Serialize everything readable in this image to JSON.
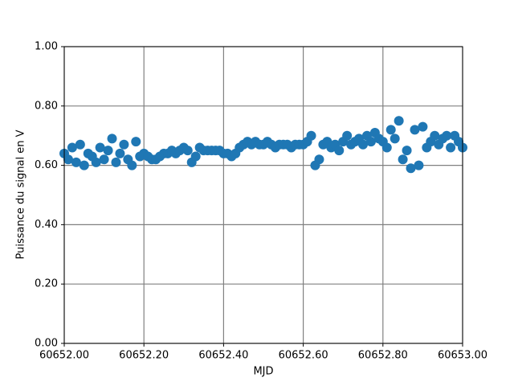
{
  "chart_data": {
    "type": "scatter",
    "xlabel": "MJD",
    "ylabel": "Puissance du signal en V",
    "color": "#1f77b4",
    "grid": true,
    "xlim": [
      60652.0,
      60653.0
    ],
    "xticks": [
      {
        "value": 60652.0,
        "label": "60652.00"
      },
      {
        "value": 60652.2,
        "label": "60652.20"
      },
      {
        "value": 60652.4,
        "label": "60652.40"
      },
      {
        "value": 60652.6,
        "label": "60652.60"
      },
      {
        "value": 60652.8,
        "label": "60652.80"
      },
      {
        "value": 60653.0,
        "label": "60653.00"
      }
    ],
    "ylim": [
      0,
      1
    ],
    "yticks": [
      {
        "value": 0,
        "label": "0.00"
      },
      {
        "value": 0.2,
        "label": "0.20"
      },
      {
        "value": 0.4,
        "label": "0.40"
      },
      {
        "value": 0.6,
        "label": "0.60"
      },
      {
        "value": 0.8,
        "label": "0.80"
      },
      {
        "value": 1,
        "label": "1.00"
      }
    ],
    "x": [
      60652.0,
      60652.01,
      60652.02,
      60652.03,
      60652.04,
      60652.05,
      60652.06,
      60652.07,
      60652.08,
      60652.09,
      60652.1,
      60652.11,
      60652.12,
      60652.13,
      60652.14,
      60652.15,
      60652.16,
      60652.17,
      60652.18,
      60652.19,
      60652.2,
      60652.21,
      60652.22,
      60652.23,
      60652.24,
      60652.25,
      60652.26,
      60652.27,
      60652.28,
      60652.29,
      60652.3,
      60652.31,
      60652.32,
      60652.33,
      60652.34,
      60652.35,
      60652.36,
      60652.37,
      60652.38,
      60652.39,
      60652.4,
      60652.41,
      60652.42,
      60652.43,
      60652.44,
      60652.45,
      60652.46,
      60652.47,
      60652.48,
      60652.49,
      60652.5,
      60652.51,
      60652.52,
      60652.53,
      60652.54,
      60652.55,
      60652.56,
      60652.57,
      60652.58,
      60652.59,
      60652.6,
      60652.61,
      60652.62,
      60652.63,
      60652.64,
      60652.65,
      60652.66,
      60652.67,
      60652.68,
      60652.69,
      60652.7,
      60652.71,
      60652.72,
      60652.73,
      60652.74,
      60652.75,
      60652.76,
      60652.77,
      60652.78,
      60652.79,
      60652.8,
      60652.81,
      60652.82,
      60652.83,
      60652.84,
      60652.85,
      60652.86,
      60652.87,
      60652.88,
      60652.89,
      60652.9,
      60652.91,
      60652.92,
      60652.93,
      60652.94,
      60652.95,
      60652.96,
      60652.97,
      60652.98,
      60652.99,
      60653.0
    ],
    "values": [
      0.64,
      0.62,
      0.66,
      0.61,
      0.67,
      0.6,
      0.64,
      0.63,
      0.61,
      0.66,
      0.62,
      0.65,
      0.69,
      0.61,
      0.64,
      0.67,
      0.62,
      0.6,
      0.68,
      0.63,
      0.64,
      0.63,
      0.62,
      0.62,
      0.63,
      0.64,
      0.64,
      0.65,
      0.64,
      0.65,
      0.66,
      0.65,
      0.61,
      0.63,
      0.66,
      0.65,
      0.65,
      0.65,
      0.65,
      0.65,
      0.64,
      0.64,
      0.63,
      0.64,
      0.66,
      0.67,
      0.68,
      0.67,
      0.68,
      0.67,
      0.67,
      0.68,
      0.67,
      0.66,
      0.67,
      0.67,
      0.67,
      0.66,
      0.67,
      0.67,
      0.67,
      0.68,
      0.7,
      0.6,
      0.62,
      0.67,
      0.68,
      0.66,
      0.67,
      0.65,
      0.68,
      0.7,
      0.67,
      0.68,
      0.69,
      0.67,
      0.7,
      0.68,
      0.71,
      0.69,
      0.68,
      0.66,
      0.72,
      0.69,
      0.75,
      0.62,
      0.65,
      0.59,
      0.72,
      0.6,
      0.73,
      0.66,
      0.68,
      0.7,
      0.67,
      0.69,
      0.7,
      0.66,
      0.7,
      0.68,
      0.66
    ]
  }
}
